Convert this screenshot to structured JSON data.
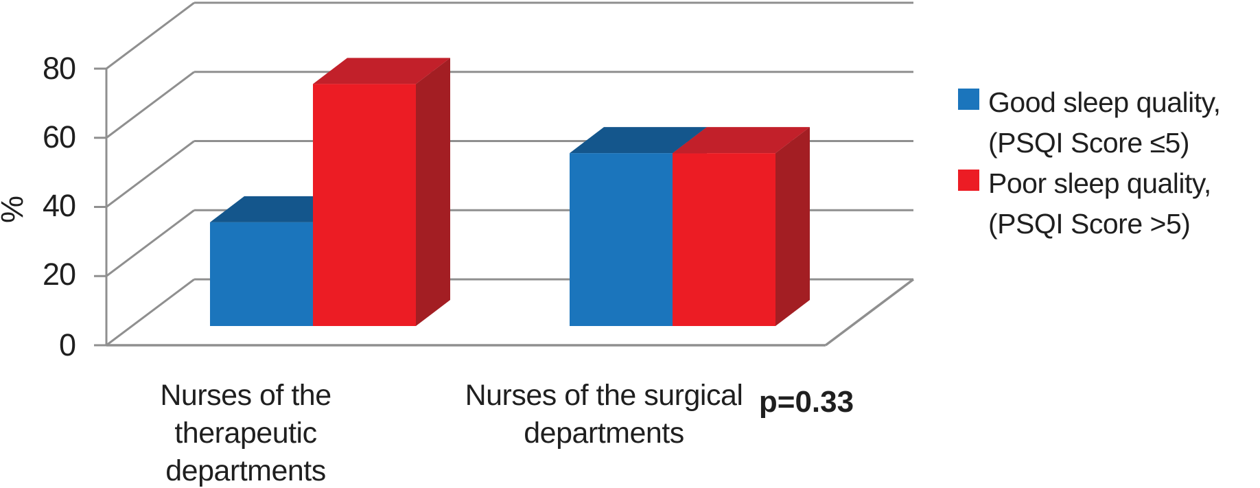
{
  "chart_data": {
    "type": "bar",
    "style": "3d-column",
    "title": "",
    "xlabel": "",
    "ylabel": "%",
    "ylim": [
      0,
      80
    ],
    "yticks": [
      0,
      20,
      40,
      60,
      80
    ],
    "ytick_labels": [
      "0",
      "20",
      "40",
      "60",
      "80"
    ],
    "grid": true,
    "legend_position": "right",
    "categories": [
      "Nurses of the therapeutic departments",
      "Nurses of the surgical departments"
    ],
    "category_lines": [
      [
        "Nurses of the",
        "therapeutic",
        "departments"
      ],
      [
        "Nurses of the surgical",
        "departments"
      ]
    ],
    "series": [
      {
        "name": "Good sleep quality, (PSQI Score ≤5)",
        "color": "#1B75BC",
        "values": [
          30,
          50
        ]
      },
      {
        "name": "Poor sleep quality, (PSQI Score >5)",
        "color": "#EC1C24",
        "values": [
          70,
          50
        ]
      }
    ],
    "annotation": "p=0.33",
    "legend": {
      "items": [
        {
          "color": "#1B75BC",
          "lines": [
            "Good sleep quality,",
            "(PSQI Score ≤5)"
          ]
        },
        {
          "color": "#EC1C24",
          "lines": [
            "Poor sleep quality,",
            "(PSQI Score >5)"
          ]
        }
      ]
    },
    "colors": {
      "blue_front": "#1B75BC",
      "blue_top": "#14568C",
      "blue_side": "#104874",
      "red_front": "#EC1C24",
      "red_top": "#C2202A",
      "red_side": "#A31E23",
      "gridline": "#8F8F8F",
      "text": "#1F1F1F"
    }
  }
}
